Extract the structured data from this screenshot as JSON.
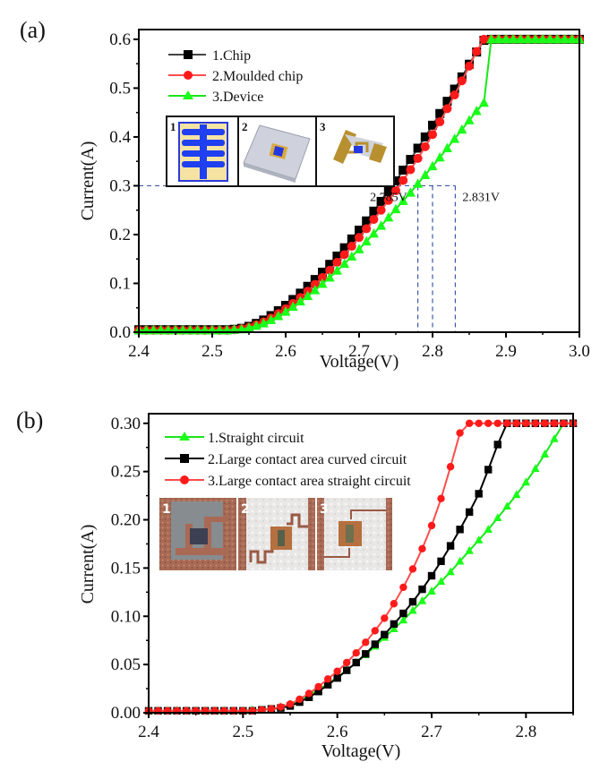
{
  "chart_data": [
    {
      "panel_label": "(a)",
      "type": "line",
      "title": "",
      "xlabel": "Voltage(V)",
      "ylabel": "Current(A)",
      "xlim": [
        2.4,
        3.0
      ],
      "ylim": [
        0.0,
        0.62
      ],
      "xticks": [
        2.4,
        2.5,
        2.6,
        2.7,
        2.8,
        2.9,
        3.0
      ],
      "xtick_labels": [
        "2.4",
        "2.5",
        "2.6",
        "2.7",
        "2.8",
        "2.9",
        "3.0"
      ],
      "yticks": [
        0.0,
        0.1,
        0.2,
        0.3,
        0.4,
        0.5,
        0.6
      ],
      "ytick_labels": [
        "0.0",
        "0.1",
        "0.2",
        "0.3",
        "0.4",
        "0.5",
        "0.6"
      ],
      "grid": false,
      "legend_position": "top-left",
      "series": [
        {
          "name": "1.Chip",
          "color": "#000000",
          "line_color": "#444444",
          "marker": "square",
          "x": [
            2.4,
            2.41,
            2.42,
            2.43,
            2.44,
            2.45,
            2.46,
            2.47,
            2.48,
            2.49,
            2.5,
            2.51,
            2.52,
            2.53,
            2.54,
            2.55,
            2.56,
            2.57,
            2.58,
            2.59,
            2.6,
            2.61,
            2.62,
            2.63,
            2.64,
            2.65,
            2.66,
            2.67,
            2.68,
            2.69,
            2.7,
            2.71,
            2.72,
            2.73,
            2.74,
            2.75,
            2.76,
            2.77,
            2.78,
            2.79,
            2.8,
            2.81,
            2.82,
            2.83,
            2.84,
            2.85,
            2.86,
            2.87,
            2.88,
            2.89,
            2.9,
            2.91,
            2.92,
            2.93,
            2.94,
            2.95,
            2.96,
            2.97,
            2.98,
            2.99,
            3.0
          ],
          "y": [
            0.005,
            0.005,
            0.005,
            0.005,
            0.005,
            0.005,
            0.005,
            0.005,
            0.005,
            0.005,
            0.005,
            0.005,
            0.005,
            0.006,
            0.008,
            0.012,
            0.018,
            0.025,
            0.034,
            0.044,
            0.055,
            0.067,
            0.08,
            0.094,
            0.108,
            0.123,
            0.139,
            0.156,
            0.173,
            0.191,
            0.209,
            0.228,
            0.248,
            0.268,
            0.288,
            0.31,
            0.332,
            0.354,
            0.377,
            0.4,
            0.424,
            0.448,
            0.473,
            0.498,
            0.523,
            0.549,
            0.574,
            0.598,
            0.6,
            0.6,
            0.6,
            0.6,
            0.6,
            0.6,
            0.6,
            0.6,
            0.6,
            0.6,
            0.6,
            0.6,
            0.6
          ]
        },
        {
          "name": "2.Moulded chip",
          "color": "#ff1a1a",
          "line_color": "#ff4d4d",
          "marker": "circle",
          "x": [
            2.4,
            2.41,
            2.42,
            2.43,
            2.44,
            2.45,
            2.46,
            2.47,
            2.48,
            2.49,
            2.5,
            2.51,
            2.52,
            2.53,
            2.54,
            2.55,
            2.56,
            2.57,
            2.58,
            2.59,
            2.6,
            2.61,
            2.62,
            2.63,
            2.64,
            2.65,
            2.66,
            2.67,
            2.68,
            2.69,
            2.7,
            2.71,
            2.72,
            2.73,
            2.74,
            2.75,
            2.76,
            2.77,
            2.78,
            2.79,
            2.8,
            2.81,
            2.82,
            2.83,
            2.84,
            2.85,
            2.86,
            2.87,
            2.88,
            2.89,
            2.9,
            2.91,
            2.92,
            2.93,
            2.94,
            2.95,
            2.96,
            2.97,
            2.98,
            2.99,
            3.0
          ],
          "y": [
            0.004,
            0.004,
            0.004,
            0.004,
            0.004,
            0.004,
            0.004,
            0.004,
            0.004,
            0.004,
            0.004,
            0.004,
            0.004,
            0.005,
            0.007,
            0.01,
            0.015,
            0.021,
            0.029,
            0.038,
            0.048,
            0.059,
            0.071,
            0.084,
            0.098,
            0.112,
            0.127,
            0.143,
            0.159,
            0.176,
            0.194,
            0.212,
            0.231,
            0.25,
            0.27,
            0.29,
            0.311,
            0.333,
            0.356,
            0.38,
            0.405,
            0.431,
            0.458,
            0.486,
            0.515,
            0.545,
            0.575,
            0.6,
            0.6,
            0.6,
            0.6,
            0.6,
            0.6,
            0.6,
            0.6,
            0.6,
            0.6,
            0.6,
            0.6,
            0.6,
            0.6
          ]
        },
        {
          "name": "3.Device",
          "color": "#19ff19",
          "line_color": "#19e619",
          "marker": "triangle",
          "x": [
            2.4,
            2.41,
            2.42,
            2.43,
            2.44,
            2.45,
            2.46,
            2.47,
            2.48,
            2.49,
            2.5,
            2.51,
            2.52,
            2.53,
            2.54,
            2.55,
            2.56,
            2.57,
            2.58,
            2.59,
            2.6,
            2.61,
            2.62,
            2.63,
            2.64,
            2.65,
            2.66,
            2.67,
            2.68,
            2.69,
            2.7,
            2.71,
            2.72,
            2.73,
            2.74,
            2.75,
            2.76,
            2.77,
            2.78,
            2.79,
            2.8,
            2.81,
            2.82,
            2.83,
            2.84,
            2.85,
            2.86,
            2.87,
            2.88,
            2.89,
            2.9,
            2.91,
            2.92,
            2.93,
            2.94,
            2.95,
            2.96,
            2.97,
            2.98,
            2.99,
            3.0
          ],
          "y": [
            0.004,
            0.004,
            0.004,
            0.004,
            0.004,
            0.004,
            0.004,
            0.004,
            0.004,
            0.004,
            0.004,
            0.004,
            0.004,
            0.005,
            0.006,
            0.009,
            0.013,
            0.018,
            0.025,
            0.033,
            0.042,
            0.052,
            0.063,
            0.074,
            0.086,
            0.099,
            0.112,
            0.126,
            0.14,
            0.155,
            0.17,
            0.186,
            0.202,
            0.218,
            0.235,
            0.252,
            0.269,
            0.286,
            0.304,
            0.322,
            0.34,
            0.358,
            0.377,
            0.396,
            0.415,
            0.434,
            0.453,
            0.47,
            0.6,
            0.6,
            0.6,
            0.6,
            0.6,
            0.6,
            0.6,
            0.6,
            0.6,
            0.6,
            0.6,
            0.6,
            0.6
          ]
        }
      ],
      "annotations": [
        {
          "text": "2.785V",
          "x": 2.785,
          "y": 0.3
        },
        {
          "text": "2.831V",
          "x": 2.831,
          "y": 0.3
        }
      ],
      "reference_lines": {
        "horizontal_y": 0.3,
        "vertical_x": [
          2.78,
          2.8,
          2.831
        ],
        "style": "dashed",
        "color": "#3a5aa8"
      },
      "insets": [
        {
          "label": "1",
          "depicts": "chip top view (blue electrode comb on yellow)"
        },
        {
          "label": "2",
          "depicts": "moulded chip (grey block, 3D)"
        },
        {
          "label": "3",
          "depicts": "device with gold circuit (3D)"
        }
      ]
    },
    {
      "panel_label": "(b)",
      "type": "line",
      "title": "",
      "xlabel": "Voltage(V)",
      "ylabel": "Current(A)",
      "xlim": [
        2.4,
        2.85
      ],
      "ylim": [
        0.0,
        0.31
      ],
      "xticks": [
        2.4,
        2.5,
        2.6,
        2.7,
        2.8
      ],
      "xtick_labels": [
        "2.4",
        "2.5",
        "2.6",
        "2.7",
        "2.8"
      ],
      "yticks": [
        0.0,
        0.05,
        0.1,
        0.15,
        0.2,
        0.25,
        0.3
      ],
      "ytick_labels": [
        "0.00",
        "0.05",
        "0.10",
        "0.15",
        "0.20",
        "0.25",
        "0.30"
      ],
      "grid": false,
      "legend_position": "top-left",
      "series": [
        {
          "name": "1.Straight circuit",
          "color": "#19ff19",
          "line_color": "#19e619",
          "marker": "triangle",
          "x": [
            2.4,
            2.41,
            2.42,
            2.43,
            2.44,
            2.45,
            2.46,
            2.47,
            2.48,
            2.49,
            2.5,
            2.51,
            2.52,
            2.53,
            2.54,
            2.55,
            2.56,
            2.57,
            2.58,
            2.59,
            2.6,
            2.61,
            2.62,
            2.63,
            2.64,
            2.65,
            2.66,
            2.67,
            2.68,
            2.69,
            2.7,
            2.71,
            2.72,
            2.73,
            2.74,
            2.75,
            2.76,
            2.77,
            2.78,
            2.79,
            2.8,
            2.81,
            2.82,
            2.83,
            2.84,
            2.85
          ],
          "y": [
            0.002,
            0.002,
            0.002,
            0.002,
            0.002,
            0.002,
            0.002,
            0.002,
            0.002,
            0.002,
            0.002,
            0.003,
            0.003,
            0.004,
            0.006,
            0.009,
            0.013,
            0.018,
            0.024,
            0.03,
            0.037,
            0.044,
            0.052,
            0.06,
            0.069,
            0.078,
            0.087,
            0.096,
            0.106,
            0.116,
            0.126,
            0.136,
            0.146,
            0.157,
            0.168,
            0.179,
            0.19,
            0.202,
            0.214,
            0.226,
            0.239,
            0.253,
            0.268,
            0.284,
            0.3,
            0.3
          ]
        },
        {
          "name": "2.Large contact area curved circuit",
          "color": "#000000",
          "line_color": "#000000",
          "marker": "square",
          "x": [
            2.4,
            2.41,
            2.42,
            2.43,
            2.44,
            2.45,
            2.46,
            2.47,
            2.48,
            2.49,
            2.5,
            2.51,
            2.52,
            2.53,
            2.54,
            2.55,
            2.56,
            2.57,
            2.58,
            2.59,
            2.6,
            2.61,
            2.62,
            2.63,
            2.64,
            2.65,
            2.66,
            2.67,
            2.68,
            2.69,
            2.7,
            2.71,
            2.72,
            2.73,
            2.74,
            2.75,
            2.76,
            2.77,
            2.78,
            2.79,
            2.8,
            2.81,
            2.82,
            2.83,
            2.84,
            2.85
          ],
          "y": [
            0.002,
            0.002,
            0.002,
            0.002,
            0.002,
            0.002,
            0.002,
            0.002,
            0.002,
            0.002,
            0.002,
            0.002,
            0.003,
            0.004,
            0.005,
            0.007,
            0.011,
            0.016,
            0.022,
            0.029,
            0.036,
            0.044,
            0.052,
            0.061,
            0.071,
            0.081,
            0.092,
            0.103,
            0.115,
            0.128,
            0.142,
            0.157,
            0.173,
            0.19,
            0.208,
            0.227,
            0.252,
            0.278,
            0.3,
            0.3,
            0.3,
            0.3,
            0.3,
            0.3,
            0.3,
            0.3
          ]
        },
        {
          "name": "3.Large contact area straight circuit",
          "color": "#ff1a1a",
          "line_color": "#ff4d4d",
          "marker": "circle",
          "x": [
            2.4,
            2.41,
            2.42,
            2.43,
            2.44,
            2.45,
            2.46,
            2.47,
            2.48,
            2.49,
            2.5,
            2.51,
            2.52,
            2.53,
            2.54,
            2.55,
            2.56,
            2.57,
            2.58,
            2.59,
            2.6,
            2.61,
            2.62,
            2.63,
            2.64,
            2.65,
            2.66,
            2.67,
            2.68,
            2.69,
            2.7,
            2.71,
            2.72,
            2.73,
            2.74,
            2.75,
            2.76,
            2.77,
            2.78,
            2.79,
            2.8,
            2.81,
            2.82,
            2.83,
            2.84,
            2.85
          ],
          "y": [
            0.002,
            0.002,
            0.002,
            0.002,
            0.002,
            0.002,
            0.002,
            0.002,
            0.002,
            0.002,
            0.002,
            0.002,
            0.003,
            0.004,
            0.006,
            0.009,
            0.014,
            0.02,
            0.027,
            0.035,
            0.043,
            0.052,
            0.062,
            0.073,
            0.085,
            0.098,
            0.113,
            0.13,
            0.149,
            0.17,
            0.194,
            0.222,
            0.255,
            0.29,
            0.3,
            0.3,
            0.3,
            0.3,
            0.3,
            0.3,
            0.3,
            0.3,
            0.3,
            0.3,
            0.3,
            0.3
          ]
        }
      ],
      "insets": [
        {
          "label": "1",
          "depicts": "photo of straight circuit"
        },
        {
          "label": "2",
          "depicts": "photo of large contact area curved circuit"
        },
        {
          "label": "3",
          "depicts": "photo of large contact area straight circuit"
        }
      ]
    }
  ]
}
